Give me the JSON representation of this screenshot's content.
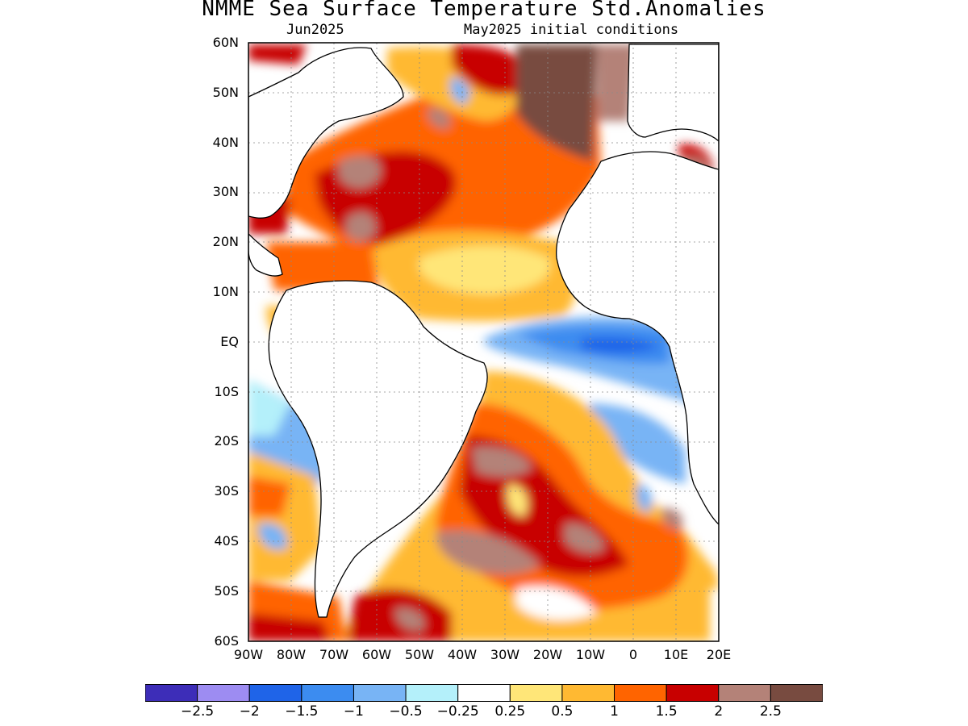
{
  "title": "NMME Sea Surface Temperature Std.Anomalies",
  "subtitle_left": "Jun2025",
  "subtitle_right": "May2025 initial conditions",
  "lat_labels": [
    "60N",
    "50N",
    "40N",
    "30N",
    "20N",
    "10N",
    "EQ",
    "10S",
    "20S",
    "30S",
    "40S",
    "50S",
    "60S"
  ],
  "lon_labels": [
    "90W",
    "80W",
    "70W",
    "60W",
    "50W",
    "40W",
    "30W",
    "20W",
    "10W",
    "0",
    "10E",
    "20E"
  ],
  "colorbar": {
    "colors": [
      "#3d2db8",
      "#9d8cf2",
      "#1f64e8",
      "#3c8cf0",
      "#78b4f5",
      "#b4f0fa",
      "#ffffff",
      "#ffe678",
      "#ffb932",
      "#ff6400",
      "#c80000",
      "#b48278",
      "#784b40"
    ],
    "labels": [
      "-2.5",
      "-2",
      "-1.5",
      "-1",
      "-0.5",
      "-0.25",
      "0.25",
      "0.5",
      "1",
      "1.5",
      "2",
      "2.5"
    ]
  }
}
